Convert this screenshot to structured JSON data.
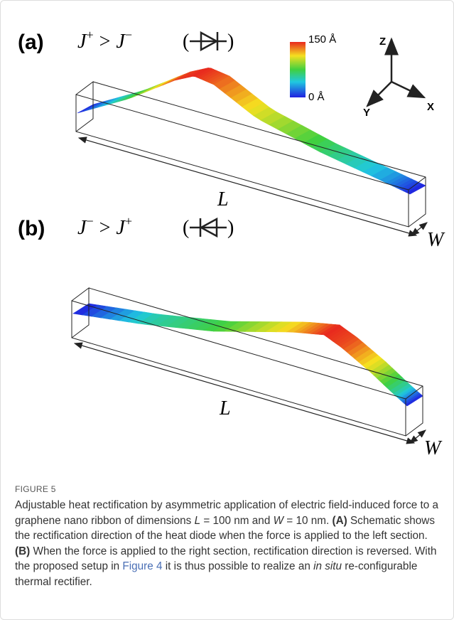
{
  "figure": {
    "panel_a": {
      "label": "(a)",
      "relation": [
        "J",
        "+",
        ">",
        "J",
        "−"
      ],
      "diode_open": "(",
      "diode_close": ")",
      "length_label": "L",
      "width_label": "W"
    },
    "panel_b": {
      "label": "(b)",
      "relation": [
        "J",
        "−",
        ">",
        "J",
        "+"
      ],
      "diode_open": "(",
      "diode_close": ")",
      "length_label": "L",
      "width_label": "W"
    },
    "colorbar": {
      "max_label": "150 Å",
      "min_label": "0 Å"
    },
    "axes": {
      "z": "Z",
      "y": "Y",
      "x": "X"
    }
  },
  "caption": {
    "label": "FIGURE 5",
    "text": [
      "Adjustable heat rectification by asymmetric application of electric field-induced force to a graphene nano ribbon of dimensions ",
      "L",
      " = 100 nm and ",
      "W",
      " = 10 nm. ",
      "(A)",
      " Schematic shows the rectification direction of the heat diode when the force is applied to the left section. ",
      "(B)",
      " When the force is applied to the right section, rectification direction is reversed. With the proposed setup in ",
      "Figure 4",
      " it is thus possible to realize an ",
      "in situ",
      " re-configurable thermal rectifier."
    ]
  }
}
